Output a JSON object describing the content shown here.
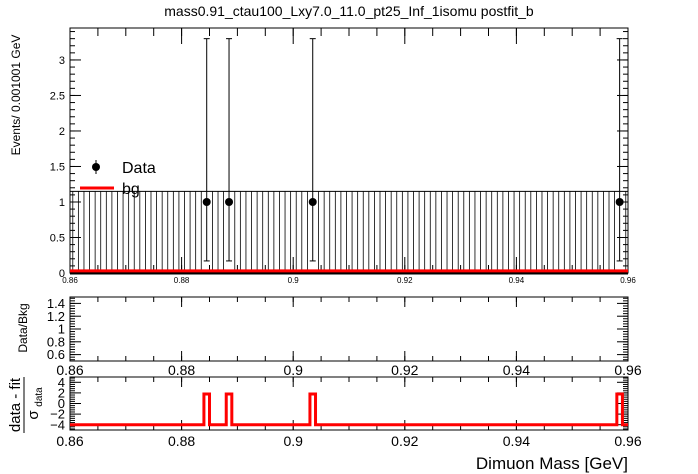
{
  "chart_data": [
    {
      "type": "scatter",
      "title": "mass0.91_ctau100_Lxy7.0_11.0_pt25_Inf_1isomu   postfit_b",
      "ylabel": "Events/ 0.001001 GeV",
      "xlim": [
        0.86,
        0.96
      ],
      "ylim": [
        0,
        3.45
      ],
      "x_ticks": [
        "0.86",
        "0.88",
        "0.9",
        "0.92",
        "0.94",
        "0.96"
      ],
      "y_ticks": [
        "0",
        "0.5",
        "1",
        "1.5",
        "2",
        "2.5",
        "3"
      ],
      "legend": {
        "placement": "top-left",
        "entries": [
          "Data",
          "bg"
        ]
      },
      "series": [
        {
          "name": "Data",
          "x": [
            0.8845,
            0.8885,
            0.9035,
            0.9585
          ],
          "y": [
            1,
            1,
            1,
            1
          ],
          "y_err_low": [
            0.83,
            0.83,
            0.83,
            0.83
          ],
          "y_err_high": [
            2.3,
            2.3,
            2.3,
            2.3
          ]
        },
        {
          "name": "bg",
          "type": "line",
          "x": [
            0.86,
            0.96
          ],
          "y": [
            0.03,
            0.03
          ]
        }
      ],
      "zero_bin_error_high": 1.15,
      "bin_width": 0.001001
    },
    {
      "type": "scatter",
      "ylabel": "Data/Bkg",
      "xlim": [
        0.86,
        0.96
      ],
      "ylim": [
        0.5,
        1.5
      ],
      "x_ticks": [
        "0.86",
        "0.88",
        "0.9",
        "0.92",
        "0.94",
        "0.96"
      ],
      "y_ticks": [
        "0.6",
        "0.8",
        "1",
        "1.2",
        "1.4"
      ],
      "series": []
    },
    {
      "type": "line",
      "ylabel_main": "data - fit",
      "ylabel_sigma": "σ",
      "ylabel_sub": "data",
      "xlabel": "Dimuon Mass [GeV]",
      "xlim": [
        0.86,
        0.96
      ],
      "ylim": [
        -5,
        5
      ],
      "x_ticks": [
        "0.86",
        "0.88",
        "0.9",
        "0.92",
        "0.94",
        "0.96"
      ],
      "y_ticks": [
        "−4",
        "−2",
        "0",
        "2",
        "4"
      ],
      "baseline": -4,
      "pulls": [
        {
          "x0": 0.884,
          "x1": 0.885,
          "y": 1.8
        },
        {
          "x0": 0.888,
          "x1": 0.889,
          "y": 1.8
        },
        {
          "x0": 0.903,
          "x1": 0.904,
          "y": 1.8
        },
        {
          "x0": 0.958,
          "x1": 0.959,
          "y": 1.8
        }
      ]
    }
  ],
  "colors": {
    "bg_line": "#ff0000",
    "data": "#000000"
  }
}
